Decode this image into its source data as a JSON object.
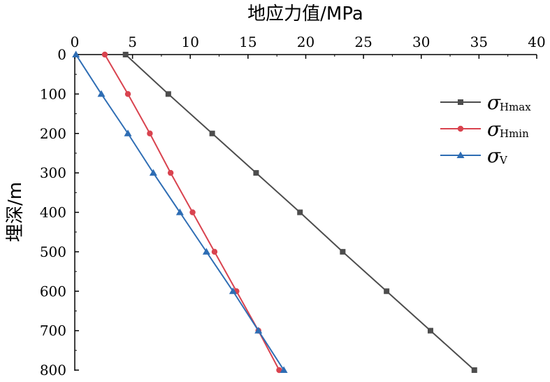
{
  "chart_data": {
    "type": "line",
    "xlabel": "地应力值/MPa",
    "ylabel": "埋深/m",
    "xlim": [
      0,
      40
    ],
    "ylim": [
      0,
      800
    ],
    "x_axis_position": "top",
    "y_axis_inverted": true,
    "x_ticks": [
      "0",
      "5",
      "10",
      "15",
      "20",
      "25",
      "30",
      "35",
      "40"
    ],
    "y_ticks": [
      "0",
      "100",
      "200",
      "300",
      "400",
      "500",
      "600",
      "700",
      "800"
    ],
    "grid": false,
    "legend_position": "right",
    "series": [
      {
        "name": "σHmax",
        "symbol": "σ",
        "subscript": "Hmax",
        "color": "#4d4d4d",
        "marker": "square",
        "depth": [
          0,
          100,
          200,
          300,
          400,
          500,
          600,
          700,
          800
        ],
        "stress": [
          4.4,
          8.1,
          11.9,
          15.7,
          19.5,
          23.2,
          27.0,
          30.8,
          34.6
        ]
      },
      {
        "name": "σHmin",
        "symbol": "σ",
        "subscript": "Hmin",
        "color": "#d9434f",
        "marker": "circle",
        "depth": [
          0,
          100,
          200,
          300,
          400,
          500,
          600,
          700,
          800
        ],
        "stress": [
          2.6,
          4.6,
          6.5,
          8.3,
          10.2,
          12.1,
          14.0,
          15.9,
          17.7
        ]
      },
      {
        "name": "σV",
        "symbol": "σ",
        "subscript": "V",
        "color": "#2e6db4",
        "marker": "triangle",
        "depth": [
          0,
          100,
          200,
          300,
          400,
          500,
          600,
          700,
          800
        ],
        "stress": [
          0.1,
          2.3,
          4.6,
          6.8,
          9.1,
          11.4,
          13.7,
          15.9,
          18.1
        ]
      }
    ]
  }
}
